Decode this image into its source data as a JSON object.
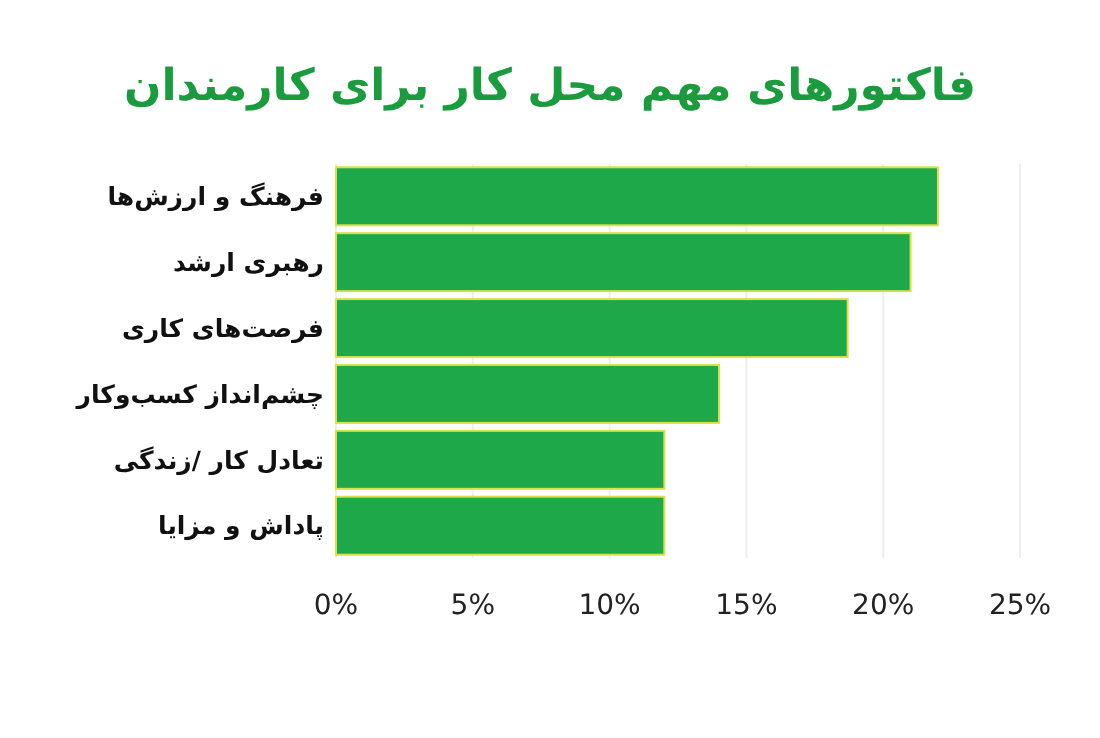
{
  "chart_data": {
    "type": "bar",
    "orientation": "horizontal",
    "title": "فاکتورهای مهم محل کار برای کارمندان",
    "categories": [
      "فرهنگ و ارزش‌ها",
      "رهبری ارشد",
      "فرصت‌های کاری",
      "چشم‌انداز کسب‌وکار",
      "تعادل کار /زندگی",
      "پاداش و مزایا"
    ],
    "values": [
      22,
      21,
      18.7,
      14,
      12,
      12
    ],
    "color": "#1fa84a",
    "xlim": [
      0,
      25
    ],
    "xticks": [
      {
        "value": 0,
        "label": "0%"
      },
      {
        "value": 5,
        "label": "5%"
      },
      {
        "value": 10,
        "label": "10%"
      },
      {
        "value": 15,
        "label": "15%"
      },
      {
        "value": 20,
        "label": "20%"
      },
      {
        "value": 25,
        "label": "25%"
      }
    ],
    "grid": "x"
  }
}
